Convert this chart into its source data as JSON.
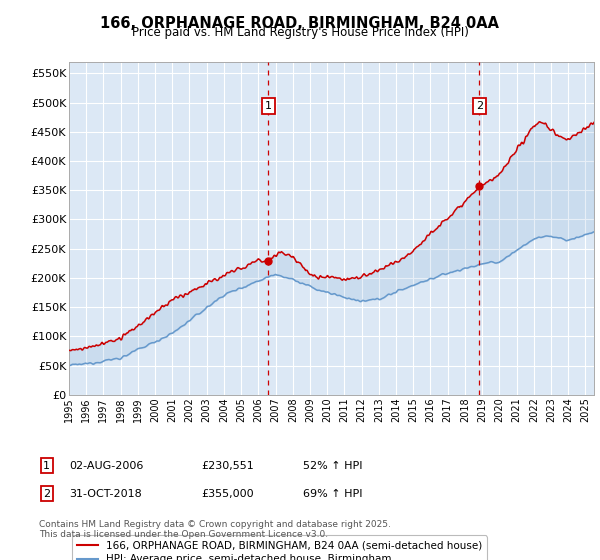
{
  "title": "166, ORPHANAGE ROAD, BIRMINGHAM, B24 0AA",
  "subtitle": "Price paid vs. HM Land Registry's House Price Index (HPI)",
  "ylabel_ticks": [
    "£0",
    "£50K",
    "£100K",
    "£150K",
    "£200K",
    "£250K",
    "£300K",
    "£350K",
    "£400K",
    "£450K",
    "£500K",
    "£550K"
  ],
  "ylim": [
    0,
    570000
  ],
  "xlim_start": 1995.0,
  "xlim_end": 2025.5,
  "marker1_x": 2006.58,
  "marker2_x": 2018.83,
  "red_line_label": "166, ORPHANAGE ROAD, BIRMINGHAM, B24 0AA (semi-detached house)",
  "blue_line_label": "HPI: Average price, semi-detached house, Birmingham",
  "footer": "Contains HM Land Registry data © Crown copyright and database right 2025.\nThis data is licensed under the Open Government Licence v3.0.",
  "bg_color": "#dce8f5",
  "grid_color": "#ffffff",
  "red_color": "#cc0000",
  "blue_color": "#6699cc",
  "fill_color": "#c5d8ef",
  "annotation_table_row1": [
    "1",
    "02-AUG-2006",
    "£230,551",
    "52% ↑ HPI"
  ],
  "annotation_table_row2": [
    "2",
    "31-OCT-2018",
    "£355,000",
    "69% ↑ HPI"
  ]
}
